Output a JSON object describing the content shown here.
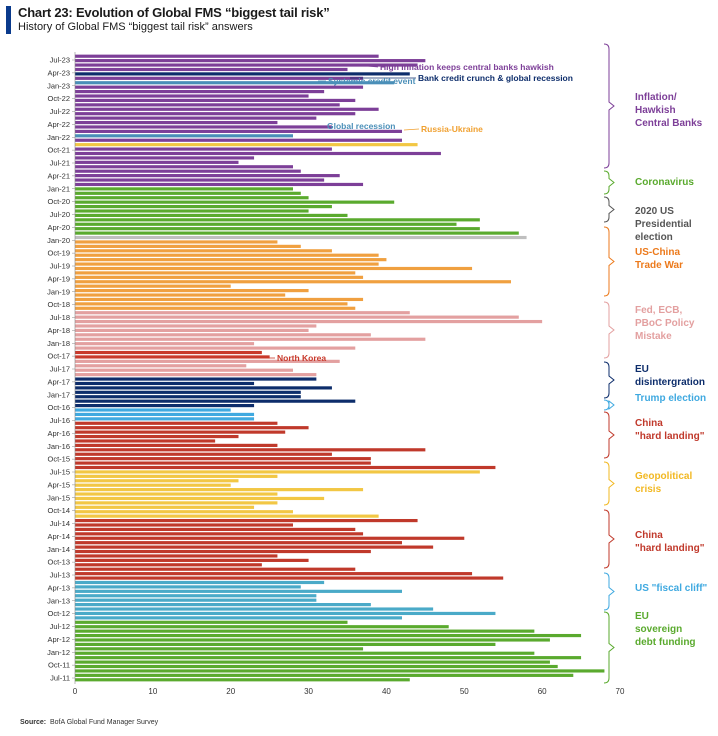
{
  "header": {
    "title": "Chart 23: Evolution of Global FMS “biggest tail risk”",
    "subtitle": "History of Global FMS “biggest tail risk” answers",
    "accent_color": "#0a3a8c"
  },
  "footer": {
    "source_label": "Source:",
    "source_text": "BofA Global Fund Manager Survey"
  },
  "chart_data": {
    "type": "bar",
    "orientation": "horizontal",
    "title": "Chart 23: Evolution of Global FMS “biggest tail risk”",
    "subtitle": "History of Global FMS “biggest tail risk” answers",
    "xlim": [
      0,
      70
    ],
    "xticks": [
      0,
      10,
      20,
      30,
      40,
      50,
      60,
      70
    ],
    "grid": false,
    "date_tick_labels": [
      "Jul-23",
      "Apr-23",
      "Jan-23",
      "Oct-22",
      "Jul-22",
      "Apr-22",
      "Jan-22",
      "Oct-21",
      "Jul-21",
      "Apr-21",
      "Jan-21",
      "Oct-20",
      "Jul-20",
      "Apr-20",
      "Jan-20",
      "Oct-19",
      "Jul-19",
      "Apr-19",
      "Jan-19",
      "Oct-18",
      "Jul-18",
      "Apr-18",
      "Jan-18",
      "Oct-17",
      "Jul-17",
      "Apr-17",
      "Jan-17",
      "Oct-16",
      "Jul-16",
      "Apr-16",
      "Jan-16",
      "Oct-15",
      "Jul-15",
      "Apr-15",
      "Jan-15",
      "Oct-14",
      "Jul-14",
      "Apr-14",
      "Jan-14",
      "Oct-13",
      "Jul-13",
      "Apr-13",
      "Jan-13",
      "Oct-12",
      "Jul-12",
      "Apr-12",
      "Jan-12",
      "Oct-11",
      "Jul-11"
    ],
    "series": [
      {
        "name": "Inflation/ Hawkish Central Banks",
        "color": "#7d3f98",
        "values": [
          39,
          45,
          44,
          35,
          37,
          37,
          32,
          30,
          36,
          34,
          39,
          36,
          31,
          26,
          33,
          42,
          42,
          33,
          47,
          23,
          21,
          28,
          29,
          34,
          32,
          37
        ]
      },
      {
        "name": "Coronavirus",
        "color": "#5aaa2e",
        "values": [
          28,
          29,
          30,
          41,
          33,
          30,
          35,
          52,
          49,
          52,
          57
        ]
      },
      {
        "name": "2020 US Presidential election",
        "color": "#bfbfbf",
        "values": [
          58
        ]
      },
      {
        "name": "US-China Trade War",
        "color": "#f0a040",
        "values": [
          26,
          29,
          33,
          39,
          40,
          39,
          51,
          36,
          37,
          56,
          20,
          30,
          27,
          37,
          35,
          36
        ]
      },
      {
        "name": "Fed, ECB, PBoC Policy Mistake",
        "color": "#e3a0a0",
        "values": [
          43,
          57,
          60,
          31,
          30,
          38,
          45,
          23,
          36
        ]
      },
      {
        "name": "North Korea",
        "color": "#c8392b",
        "values": [
          24,
          25
        ]
      },
      {
        "name": "North Korea (trailing)",
        "color": "#e3a0a0",
        "values": [
          34,
          22,
          28,
          31
        ]
      },
      {
        "name": "EU disintergration",
        "color": "#0d2d6b",
        "values": [
          31,
          23,
          33,
          29,
          29,
          36,
          23
        ]
      },
      {
        "name": "Trump election",
        "color": "#3fa9e0",
        "values": [
          20,
          23,
          23
        ]
      },
      {
        "name": "China \"hard landing\" (2015-16)",
        "color": "#c0392b",
        "values": [
          26,
          30,
          27,
          21,
          18,
          26,
          45,
          33,
          38,
          38,
          54
        ]
      },
      {
        "name": "Geopolitical crisis",
        "color": "#f2c744",
        "values": [
          52,
          26,
          21,
          20,
          37,
          26,
          32,
          26,
          23,
          28,
          39
        ]
      },
      {
        "name": "China \"hard landing\" (2013-14)",
        "color": "#c0392b",
        "values": [
          44,
          28,
          36,
          37,
          50,
          42,
          46,
          38,
          26,
          30,
          24,
          36,
          51,
          55
        ]
      },
      {
        "name": "US \"fiscal cliff\"",
        "color": "#4aaac8",
        "values": [
          32,
          29,
          42,
          31,
          31,
          38,
          46,
          54,
          42
        ]
      },
      {
        "name": "EU sovereign debt funding",
        "color": "#5aaa2e",
        "values": [
          35,
          48,
          59,
          65,
          61,
          54,
          37,
          59,
          65,
          61,
          62,
          68,
          64,
          43
        ]
      }
    ],
    "group_labels": [
      {
        "text": "Inflation/\nHawkish\nCentral Banks",
        "color": "#7d3f98"
      },
      {
        "text": "Coronavirus",
        "color": "#5aaa2e"
      },
      {
        "text": "2020 US\nPresidential\nelection",
        "color": "#555555"
      },
      {
        "text": "US-China\nTrade War",
        "color": "#ec7a1c"
      },
      {
        "text": "Fed, ECB,\nPBoC Policy\nMistake",
        "color": "#e3a0a0"
      },
      {
        "text": "EU\ndisintergration",
        "color": "#0d2d6b"
      },
      {
        "text": "Trump election",
        "color": "#3fa9e0"
      },
      {
        "text": "China\n\"hard landing\"",
        "color": "#c0392b"
      },
      {
        "text": "Geopolitical\ncrisis",
        "color": "#f2b822"
      },
      {
        "text": "China\n\"hard landing\"",
        "color": "#c0392b"
      },
      {
        "text": "US \"fiscal cliff\"",
        "color": "#3fa9e0"
      },
      {
        "text": "EU\nsovereign\ndebt funding",
        "color": "#5aaa2e"
      }
    ],
    "annotations": [
      {
        "text": "High inflation keeps central banks hawkish",
        "color": "#7d3f98"
      },
      {
        "text": "Bank credit crunch & global recession",
        "color": "#0d2d6b"
      },
      {
        "text": "Systemic credit event",
        "color": "#4a8fb8"
      },
      {
        "text": "Global recession",
        "color": "#4a8fb8"
      },
      {
        "text": "Russia-Ukraine",
        "color": "#f0a030"
      },
      {
        "text": "North Korea",
        "color": "#c8392b"
      }
    ],
    "highlight_bars": [
      {
        "after_series_index": 0,
        "row": 3,
        "value": 43,
        "color": "#0d2d6b"
      },
      {
        "after_series_index": 0,
        "row": 4,
        "value": 41,
        "color": "#4a8fb8"
      },
      {
        "after_series_index": 0,
        "row": 15,
        "value": 28,
        "color": "#4a8fb8"
      },
      {
        "after_series_index": 0,
        "row": 16,
        "value": 44,
        "color": "#f2c744"
      }
    ]
  }
}
